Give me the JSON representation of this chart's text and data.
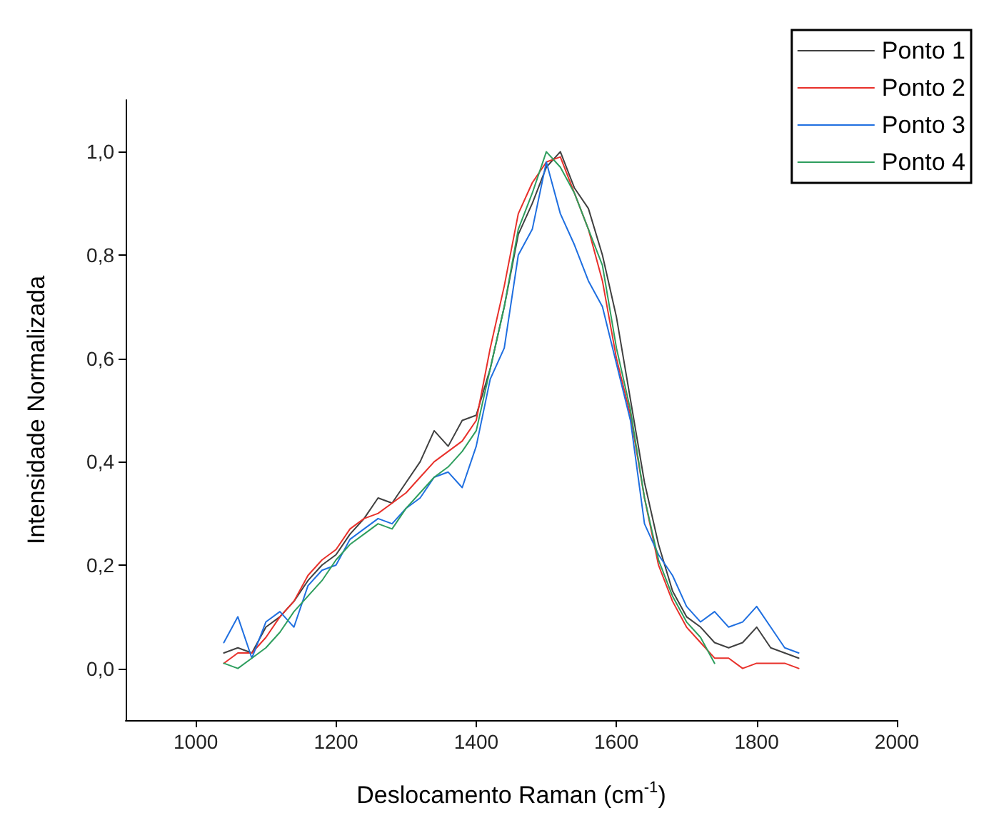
{
  "chart_data": {
    "type": "line",
    "xlabel": "Deslocamento Raman (cm$^{-1}$)",
    "ylabel": "Intensidade Normalizada",
    "x": [
      1040,
      1060,
      1080,
      1100,
      1120,
      1140,
      1160,
      1180,
      1200,
      1220,
      1240,
      1260,
      1280,
      1300,
      1320,
      1340,
      1360,
      1380,
      1400,
      1420,
      1440,
      1460,
      1480,
      1500,
      1520,
      1540,
      1560,
      1580,
      1600,
      1620,
      1640,
      1660,
      1680,
      1700,
      1720,
      1740,
      1760,
      1780,
      1800,
      1820,
      1840,
      1860
    ],
    "series": [
      {
        "name": "Ponto 1",
        "color": "#404040",
        "values": [
          0.03,
          0.04,
          0.03,
          0.08,
          0.1,
          0.13,
          0.17,
          0.2,
          0.22,
          0.26,
          0.29,
          0.33,
          0.32,
          0.36,
          0.4,
          0.46,
          0.43,
          0.48,
          0.49,
          0.58,
          0.7,
          0.84,
          0.9,
          0.97,
          1.0,
          0.93,
          0.89,
          0.8,
          0.68,
          0.52,
          0.36,
          0.24,
          0.15,
          0.1,
          0.08,
          0.05,
          0.04,
          0.05,
          0.08,
          0.04,
          0.03,
          0.02
        ]
      },
      {
        "name": "Ponto 2",
        "color": "#e8302a",
        "values": [
          0.01,
          0.03,
          0.03,
          0.06,
          0.1,
          0.13,
          0.18,
          0.21,
          0.23,
          0.27,
          0.29,
          0.3,
          0.32,
          0.34,
          0.37,
          0.4,
          0.42,
          0.44,
          0.48,
          0.62,
          0.74,
          0.88,
          0.94,
          0.98,
          0.99,
          0.92,
          0.85,
          0.75,
          0.6,
          0.49,
          0.33,
          0.2,
          0.13,
          0.08,
          0.05,
          0.02,
          0.02,
          0.0,
          0.01,
          0.01,
          0.01,
          0.0
        ]
      },
      {
        "name": "Ponto 3",
        "color": "#1f6fe0",
        "values": [
          0.05,
          0.1,
          0.02,
          0.09,
          0.11,
          0.08,
          0.16,
          0.19,
          0.2,
          0.25,
          0.27,
          0.29,
          0.28,
          0.31,
          0.33,
          0.37,
          0.38,
          0.35,
          0.43,
          0.56,
          0.62,
          0.8,
          0.85,
          0.98,
          0.88,
          0.82,
          0.75,
          0.7,
          0.59,
          0.48,
          0.28,
          0.22,
          0.18,
          0.12,
          0.09,
          0.11,
          0.08,
          0.09,
          0.12,
          0.08,
          0.04,
          0.03
        ]
      },
      {
        "name": "Ponto 4",
        "color": "#2e9e5e",
        "values": [
          0.01,
          0.0,
          0.02,
          0.04,
          0.07,
          0.11,
          0.14,
          0.17,
          0.21,
          0.24,
          0.26,
          0.28,
          0.27,
          0.31,
          0.34,
          0.37,
          0.39,
          0.42,
          0.46,
          0.58,
          0.7,
          0.85,
          0.92,
          1.0,
          0.97,
          0.92,
          0.85,
          0.78,
          0.62,
          0.5,
          0.33,
          0.21,
          0.14,
          0.09,
          0.06,
          0.01,
          null,
          null,
          null,
          null,
          null,
          null
        ]
      }
    ],
    "xlim": [
      900,
      2000
    ],
    "xticks": [
      1000,
      1200,
      1400,
      1600,
      1800,
      2000
    ],
    "ylim": [
      -0.1,
      1.1
    ],
    "yticks": [
      {
        "value": 0,
        "label": "0,0"
      },
      {
        "value": 0.2,
        "label": "0,2"
      },
      {
        "value": 0.4,
        "label": "0,4"
      },
      {
        "value": 0.6,
        "label": "0,6"
      },
      {
        "value": 0.8,
        "label": "0,8"
      },
      {
        "value": 1.0,
        "label": "1,0"
      }
    ],
    "grid": false,
    "legend": "top right",
    "marker": "none",
    "line_style": "solid"
  }
}
